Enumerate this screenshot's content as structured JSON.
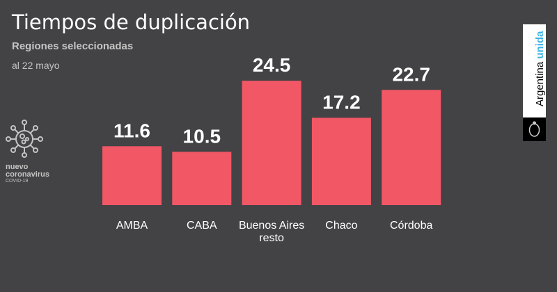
{
  "chart_data": {
    "type": "bar",
    "title": "Tiempos de duplicación",
    "subtitle": "Regiones seleccionadas",
    "note": "al 22 mayo",
    "categories": [
      [
        "AMBA"
      ],
      [
        "CABA"
      ],
      [
        "Buenos Aires",
        "resto"
      ],
      [
        "Chaco"
      ],
      [
        "Córdoba"
      ]
    ],
    "values": [
      11.6,
      10.5,
      24.5,
      17.2,
      22.7
    ],
    "value_labels": [
      "11.6",
      "10.5",
      "24.5",
      "17.2",
      "22.7"
    ],
    "xlabel": "",
    "ylabel": "",
    "ylim": [
      0,
      26
    ],
    "grid": false,
    "bar_color": "#f25766"
  },
  "logo": {
    "line1": "nuevo",
    "line2": "coronavirus",
    "line3": "COVID-19"
  },
  "brand": {
    "word1": "Argentina",
    "word2": "unida"
  }
}
